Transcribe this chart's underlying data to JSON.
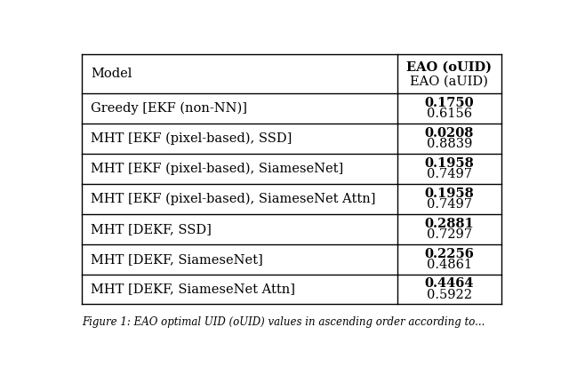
{
  "header_col": "Model",
  "header_val_bold": "EAO (oUID)",
  "header_val_normal": "EAO (aUID)",
  "rows": [
    {
      "model": "Greedy [EKF (non-NN)]",
      "val_bold": "0.1750",
      "val_normal": "0.6156"
    },
    {
      "model": "MHT [EKF (pixel-based), SSD]",
      "val_bold": "0.0208",
      "val_normal": "0.8839"
    },
    {
      "model": "MHT [EKF (pixel-based), SiameseNet]",
      "val_bold": "0.1958",
      "val_normal": "0.7497"
    },
    {
      "model": "MHT [EKF (pixel-based), SiameseNet Attn]",
      "val_bold": "0.1958",
      "val_normal": "0.7497"
    },
    {
      "model": "MHT [DEKF, SSD]",
      "val_bold": "0.2881",
      "val_normal": "0.7297"
    },
    {
      "model": "MHT [DEKF, SiameseNet]",
      "val_bold": "0.2256",
      "val_normal": "0.4861"
    },
    {
      "model": "MHT [DEKF, SiameseNet Attn]",
      "val_bold": "0.4464",
      "val_normal": "0.5922"
    }
  ],
  "bg_color": "#ffffff",
  "text_color": "#000000",
  "line_color": "#000000",
  "font_size": 10.5,
  "caption": "Figure 1: EAO optimal UID (oUID) values in ascending order according to..."
}
